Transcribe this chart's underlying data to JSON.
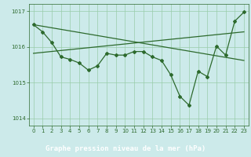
{
  "title": "Graphe pression niveau de la mer (hPa)",
  "bg_color": "#cceaea",
  "label_bg_color": "#2d6a2d",
  "label_text_color": "#ffffff",
  "line_color": "#2d6a2d",
  "grid_color": "#99ccaa",
  "xlim": [
    -0.5,
    23.5
  ],
  "ylim": [
    1013.8,
    1017.2
  ],
  "yticks": [
    1014,
    1015,
    1016,
    1017
  ],
  "xticks": [
    0,
    1,
    2,
    3,
    4,
    5,
    6,
    7,
    8,
    9,
    10,
    11,
    12,
    13,
    14,
    15,
    16,
    17,
    18,
    19,
    20,
    21,
    22,
    23
  ],
  "series1_x": [
    0,
    1,
    2,
    3,
    4,
    5,
    6,
    7,
    8,
    9,
    10,
    11,
    12,
    13,
    14,
    15,
    16,
    17,
    18,
    19,
    20,
    21,
    22,
    23
  ],
  "series1_y": [
    1016.62,
    1016.42,
    1016.12,
    1015.72,
    1015.65,
    1015.55,
    1015.35,
    1015.47,
    1015.82,
    1015.77,
    1015.77,
    1015.87,
    1015.87,
    1015.72,
    1015.62,
    1015.22,
    1014.62,
    1014.37,
    1015.32,
    1015.17,
    1016.02,
    1015.77,
    1016.72,
    1016.97
  ],
  "series2_x": [
    0,
    23
  ],
  "series2_y": [
    1016.62,
    1015.62
  ],
  "series3_x": [
    0,
    23
  ],
  "series3_y": [
    1015.82,
    1016.42
  ]
}
